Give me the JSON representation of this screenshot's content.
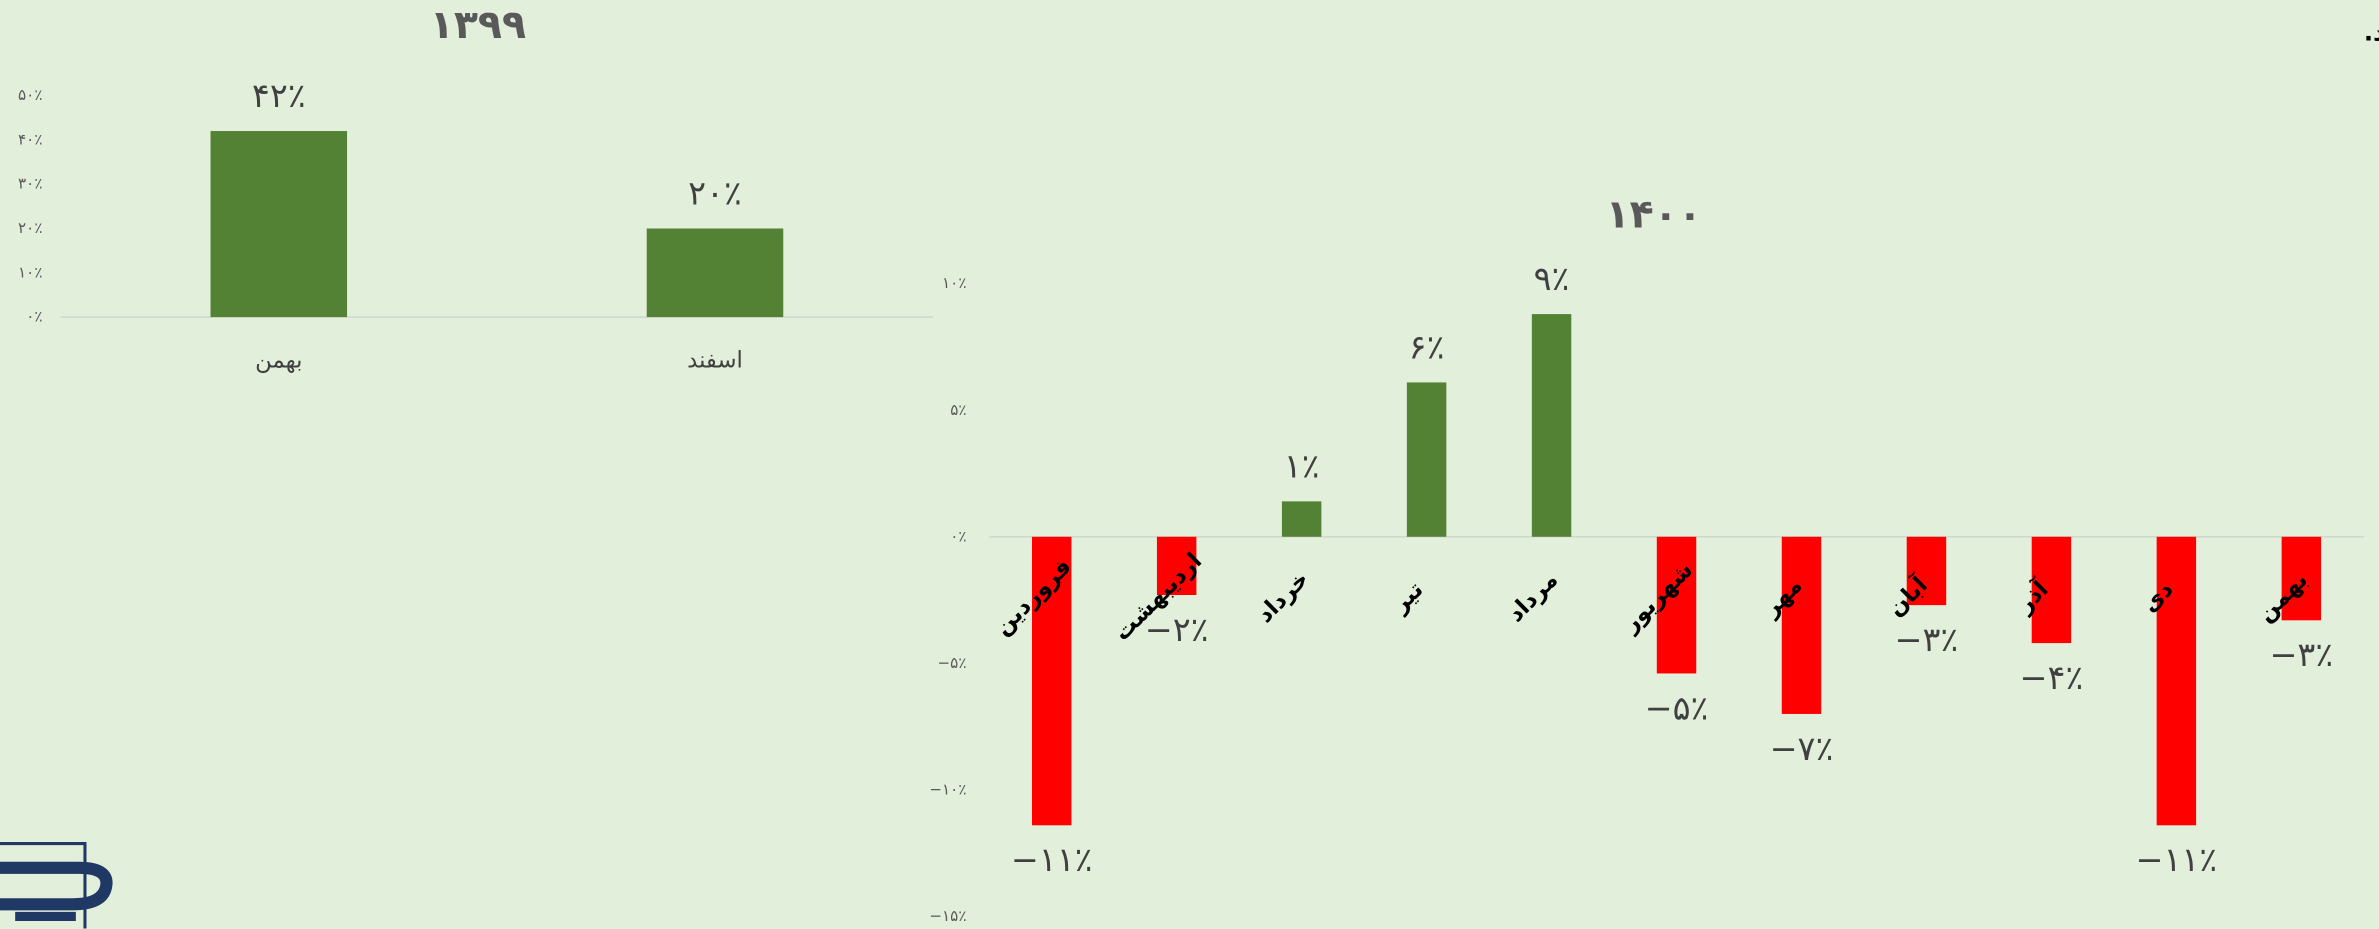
{
  "header": {
    "text": "مرداد ماه این شرکت توانست بازدهی مثبتی را ثبت نماید."
  },
  "chart_data": [
    {
      "type": "bar",
      "title": "۱۳۹۹",
      "categories": [
        "بهمن",
        "اسفند"
      ],
      "values": [
        42,
        20
      ],
      "value_labels": [
        "۴۲٪",
        "۲۰٪"
      ],
      "color": "#548235",
      "ylim": [
        0,
        50
      ],
      "yticks": [
        {
          "value": 0,
          "label": "۰٪"
        },
        {
          "value": 10,
          "label": "۱۰٪"
        },
        {
          "value": 20,
          "label": "۲۰٪"
        },
        {
          "value": 30,
          "label": "۳۰٪"
        },
        {
          "value": 40,
          "label": "۴۰٪"
        },
        {
          "value": 50,
          "label": "۵۰٪"
        }
      ]
    },
    {
      "type": "bar",
      "title": "۱۴۰۰",
      "categories": [
        "فروردین",
        "اردیبهشت",
        "خرداد",
        "تیر",
        "مرداد",
        "شهریور",
        "مهر",
        "آبان",
        "آذر",
        "دی",
        "بهمن"
      ],
      "values": [
        -11.4,
        -2.3,
        1.4,
        6.1,
        8.8,
        -5.4,
        -7.0,
        -2.7,
        -4.2,
        -11.4,
        -3.3
      ],
      "value_labels": [
        "−۱۱٪",
        "−۲٪",
        "۱٪",
        "۶٪",
        "۹٪",
        "−۵٪",
        "−۷٪",
        "−۳٪",
        "−۴٪",
        "−۱۱٪",
        "−۳٪"
      ],
      "colors": [
        "#ff0000",
        "#ff0000",
        "#548235",
        "#548235",
        "#548235",
        "#ff0000",
        "#ff0000",
        "#ff0000",
        "#ff0000",
        "#ff0000",
        "#ff0000"
      ],
      "ylim": [
        -15,
        10
      ],
      "yticks": [
        {
          "value": -15,
          "label": "−۱۵٪"
        },
        {
          "value": -10,
          "label": "−۱۰٪"
        },
        {
          "value": -5,
          "label": "−۵٪"
        },
        {
          "value": 0,
          "label": "۰٪"
        },
        {
          "value": 5,
          "label": "۵٪"
        },
        {
          "value": 10,
          "label": "۱۰٪"
        }
      ]
    }
  ]
}
